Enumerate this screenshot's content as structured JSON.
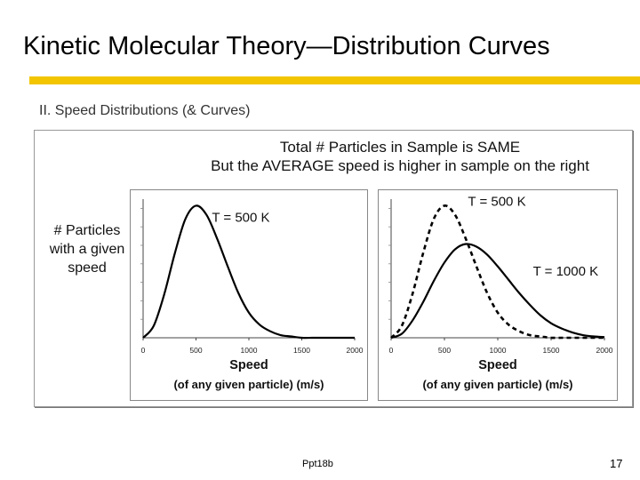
{
  "title": "Kinetic Molecular Theory—Distribution Curves",
  "section": "II.  Speed Distributions (& Curves)",
  "figure": {
    "caption_line1": "Total # Particles in Sample is SAME",
    "caption_line2": "But the AVERAGE speed is higher in sample on the right",
    "ylabel_line1": "# Particles",
    "ylabel_line2": "with a given",
    "ylabel_line3": "speed"
  },
  "chart_data": [
    {
      "type": "line",
      "title": "",
      "xlabel_line1": "Speed",
      "xlabel_line2": "(of any given particle) (m/s)",
      "ylabel": "",
      "xlim": [
        0,
        2000
      ],
      "ylim": [
        0,
        1.05
      ],
      "x_ticks": [
        "0",
        "500",
        "1000",
        "1500",
        "2000"
      ],
      "grid": false,
      "series": [
        {
          "name": "T = 500 K",
          "style": "solid",
          "x": [
            0,
            100,
            200,
            300,
            400,
            500,
            600,
            700,
            800,
            900,
            1000,
            1100,
            1200,
            1300,
            1400,
            1500,
            1600,
            1700,
            1800,
            1900,
            2000
          ],
          "y": [
            0,
            0.09,
            0.33,
            0.64,
            0.9,
            1.0,
            0.93,
            0.75,
            0.54,
            0.34,
            0.19,
            0.1,
            0.05,
            0.02,
            0.01,
            0,
            0,
            0,
            0,
            0,
            0
          ]
        }
      ],
      "annotations": [
        {
          "text": "T = 500 K",
          "x": 650,
          "y": 0.88
        }
      ]
    },
    {
      "type": "line",
      "title": "",
      "xlabel_line1": "Speed",
      "xlabel_line2": "(of any given particle) (m/s)",
      "ylabel": "",
      "xlim": [
        0,
        2000
      ],
      "ylim": [
        0,
        1.05
      ],
      "x_ticks": [
        "0",
        "500",
        "1000",
        "1500",
        "2000"
      ],
      "grid": false,
      "series": [
        {
          "name": "T = 500 K",
          "style": "dashed",
          "x": [
            0,
            100,
            200,
            300,
            400,
            500,
            600,
            700,
            800,
            900,
            1000,
            1100,
            1200,
            1300,
            1400,
            1500,
            1600,
            1700,
            1800,
            1900,
            2000
          ],
          "y": [
            0,
            0.09,
            0.33,
            0.64,
            0.9,
            1.0,
            0.93,
            0.75,
            0.54,
            0.34,
            0.19,
            0.1,
            0.05,
            0.02,
            0.01,
            0,
            0,
            0,
            0,
            0,
            0
          ]
        },
        {
          "name": "T = 1000 K",
          "style": "solid",
          "x": [
            0,
            100,
            200,
            300,
            400,
            500,
            600,
            700,
            800,
            900,
            1000,
            1100,
            1200,
            1300,
            1400,
            1500,
            1600,
            1700,
            1800,
            1900,
            2000
          ],
          "y": [
            0,
            0.03,
            0.13,
            0.27,
            0.43,
            0.57,
            0.67,
            0.71,
            0.69,
            0.63,
            0.54,
            0.44,
            0.34,
            0.25,
            0.17,
            0.11,
            0.07,
            0.04,
            0.02,
            0.01,
            0.005
          ]
        }
      ],
      "annotations": [
        {
          "text": "T = 500 K",
          "x": 720,
          "y": 1.0
        },
        {
          "text": "T = 1000 K",
          "x": 1330,
          "y": 0.47
        }
      ]
    }
  ],
  "footer": {
    "center_text": "Ppt18b",
    "page_number": "17"
  }
}
